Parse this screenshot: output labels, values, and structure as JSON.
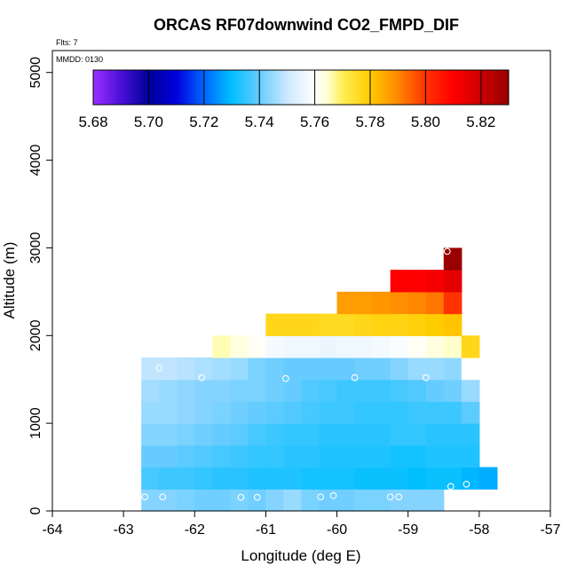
{
  "chart_data": {
    "type": "heatmap",
    "title": "ORCAS RF07downwind CO2_FMPD_DIF",
    "xlabel": "Longitude (deg E)",
    "ylabel": "Altitude (m)",
    "flts_note": "Flts: 7",
    "mmdd_note": "MMDD: 0130",
    "xlim": [
      -64,
      -57
    ],
    "ylim": [
      0,
      5250
    ],
    "xticks": [
      -64,
      -63,
      -62,
      -61,
      -60,
      -59,
      -58,
      -57
    ],
    "xtick_labels": [
      "-64",
      "-63",
      "-62",
      "-61",
      "-60",
      "-59",
      "-58",
      "-57"
    ],
    "yticks": [
      0,
      1000,
      2000,
      3000,
      4000,
      5000
    ],
    "ytick_labels": [
      "0",
      "1000",
      "2000",
      "3000",
      "4000",
      "5000"
    ],
    "cell_width": 0.25,
    "cell_height": 250,
    "colorbar": {
      "min": 5.68,
      "max": 5.83,
      "ticks": [
        5.68,
        5.7,
        5.72,
        5.74,
        5.76,
        5.78,
        5.8,
        5.82
      ],
      "tick_labels": [
        "5.68",
        "5.70",
        "5.72",
        "5.74",
        "5.76",
        "5.78",
        "5.80",
        "5.82"
      ],
      "stops": [
        [
          5.68,
          "#9b30ff"
        ],
        [
          5.69,
          "#4a10d8"
        ],
        [
          5.7,
          "#000099"
        ],
        [
          5.71,
          "#0000dd"
        ],
        [
          5.72,
          "#0066ff"
        ],
        [
          5.73,
          "#00bfff"
        ],
        [
          5.74,
          "#66ccff"
        ],
        [
          5.75,
          "#cce8ff"
        ],
        [
          5.76,
          "#ffffff"
        ],
        [
          5.765,
          "#ffffcc"
        ],
        [
          5.77,
          "#ffee55"
        ],
        [
          5.78,
          "#ffcc00"
        ],
        [
          5.79,
          "#ff8800"
        ],
        [
          5.8,
          "#ff3300"
        ],
        [
          5.81,
          "#ff0000"
        ],
        [
          5.82,
          "#cc0000"
        ],
        [
          5.83,
          "#990000"
        ]
      ]
    },
    "rows": [
      {
        "y": 0,
        "x0": -62.75,
        "values": [
          5.743,
          5.743,
          5.742,
          5.741,
          5.741,
          5.742,
          5.741,
          5.743,
          5.745,
          5.742,
          5.741,
          5.741,
          5.742,
          5.742,
          5.743,
          5.743,
          5.743
        ]
      },
      {
        "y": 250,
        "x0": -62.75,
        "values": [
          5.737,
          5.736,
          5.736,
          5.735,
          5.734,
          5.734,
          5.733,
          5.733,
          5.733,
          5.732,
          5.732,
          5.732,
          5.731,
          5.731,
          5.731,
          5.73,
          5.731,
          5.731,
          5.729,
          5.728
        ]
      },
      {
        "y": 500,
        "x0": -62.75,
        "values": [
          5.74,
          5.74,
          5.739,
          5.738,
          5.737,
          5.736,
          5.735,
          5.735,
          5.734,
          5.734,
          5.733,
          5.733,
          5.733,
          5.733,
          5.732,
          5.732,
          5.733,
          5.733,
          5.733
        ]
      },
      {
        "y": 750,
        "x0": -62.75,
        "values": [
          5.743,
          5.743,
          5.742,
          5.741,
          5.74,
          5.739,
          5.737,
          5.736,
          5.735,
          5.735,
          5.734,
          5.734,
          5.734,
          5.734,
          5.735,
          5.735,
          5.734,
          5.734,
          5.734
        ]
      },
      {
        "y": 1000,
        "x0": -62.75,
        "values": [
          5.745,
          5.745,
          5.744,
          5.743,
          5.742,
          5.741,
          5.74,
          5.739,
          5.738,
          5.737,
          5.736,
          5.736,
          5.735,
          5.735,
          5.735,
          5.736,
          5.736,
          5.736,
          5.739
        ]
      },
      {
        "y": 1250,
        "x0": -62.75,
        "values": [
          5.746,
          5.745,
          5.744,
          5.743,
          5.743,
          5.742,
          5.742,
          5.741,
          5.74,
          5.738,
          5.737,
          5.736,
          5.736,
          5.736,
          5.737,
          5.738,
          5.74,
          5.741,
          5.745
        ]
      },
      {
        "y": 1500,
        "x0": -62.75,
        "values": [
          5.749,
          5.749,
          5.748,
          5.747,
          5.746,
          5.745,
          5.742,
          5.741,
          5.74,
          5.74,
          5.74,
          5.74,
          5.741,
          5.741,
          5.743,
          5.745,
          5.745,
          5.744,
          5.76
        ]
      },
      {
        "y": 1750,
        "x0": -61.75,
        "values": [
          5.766,
          5.763,
          5.761,
          5.758,
          5.757,
          5.757,
          5.756,
          5.757,
          5.757,
          5.758,
          5.759,
          5.761,
          5.763,
          5.765,
          5.777
        ]
      },
      {
        "y": 2000,
        "x0": -61.0,
        "values": [
          5.777,
          5.777,
          5.777,
          5.776,
          5.776,
          5.777,
          5.778,
          5.778,
          5.779,
          5.78,
          5.781
        ]
      },
      {
        "y": 2250,
        "x0": -60.0,
        "values": [
          5.787,
          5.787,
          5.788,
          5.789,
          5.79,
          5.792,
          5.8
        ]
      },
      {
        "y": 2500,
        "x0": -59.25,
        "values": [
          5.81,
          5.81,
          5.812,
          5.815
        ]
      },
      {
        "y": 2750,
        "x0": -58.5,
        "values": [
          5.83
        ]
      }
    ],
    "flights": [
      {
        "lon": -62.7,
        "alt": 160
      },
      {
        "lon": -62.45,
        "alt": 160
      },
      {
        "lon": -61.35,
        "alt": 155
      },
      {
        "lon": -61.12,
        "alt": 155
      },
      {
        "lon": -60.23,
        "alt": 160
      },
      {
        "lon": -60.05,
        "alt": 175
      },
      {
        "lon": -59.25,
        "alt": 160
      },
      {
        "lon": -59.13,
        "alt": 160
      },
      {
        "lon": -58.4,
        "alt": 280
      },
      {
        "lon": -58.18,
        "alt": 305
      },
      {
        "lon": -62.5,
        "alt": 1630
      },
      {
        "lon": -61.9,
        "alt": 1520
      },
      {
        "lon": -60.72,
        "alt": 1510
      },
      {
        "lon": -59.75,
        "alt": 1520
      },
      {
        "lon": -58.75,
        "alt": 1520
      },
      {
        "lon": -58.45,
        "alt": 2960
      }
    ]
  }
}
